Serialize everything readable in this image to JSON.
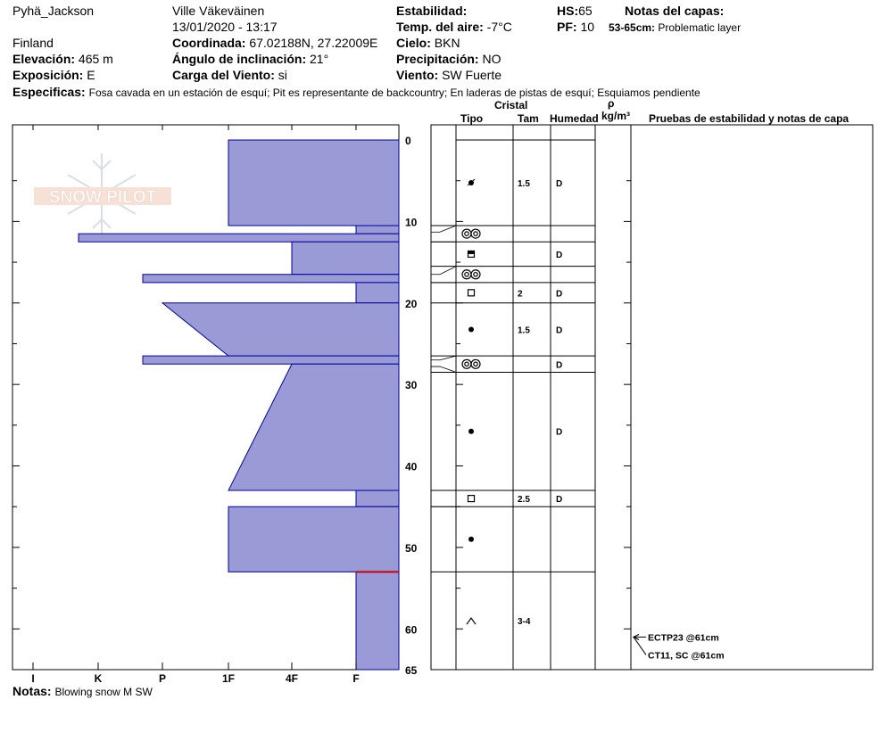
{
  "header": {
    "location": "Pyhä_Jackson",
    "observer": "Ville Väkeväinen",
    "datetime": "13/01/2020 - 13:17",
    "country": "Finland",
    "coord_label": "Coordinada:",
    "coord_value": "67.02188N, 27.22009E",
    "elev_label": "Elevación:",
    "elev_value": "465 m",
    "angle_label": "Ángulo de inclinación:",
    "angle_value": "21°",
    "expo_label": "Exposición:",
    "expo_value": "E",
    "wind_load_label": "Carga del Viento:",
    "wind_load_value": "si",
    "stability_label": "Estabilidad:",
    "air_temp_label": "Temp. del aire:",
    "air_temp_value": "-7°C",
    "sky_label": "Cielo:",
    "sky_value": "BKN",
    "precip_label": "Precipitación:",
    "precip_value": "NO",
    "wind_label": "Viento:",
    "wind_value": "SW Fuerte",
    "hs_label": "HS:",
    "hs_value": "65",
    "pf_label": "PF:",
    "pf_value": "10",
    "layer_notes_label": "Notas del capas:",
    "layer_note_range": "53-65cm:",
    "layer_note_text": "Problematic layer",
    "specifics_label": "Especificas:",
    "specifics_text": "Fosa cavada en un estación de esquí; Pit es representante de backcountry; En laderas de pistas de esquí; Esquiamos pendiente"
  },
  "columns": {
    "cristal": "Cristal",
    "tipo": "Tipo",
    "tam": "Tam",
    "humedad": "Humedad",
    "rho": "ρ",
    "density_unit": "kg/m³",
    "tests": "Pruebas de estabilidad y notas de capa"
  },
  "logo_text": "SNOW PILOT",
  "notes_label": "Notas:",
  "notes_text": "Blowing snow M SW",
  "colors": {
    "fill": "#9a9ad6",
    "stroke": "#0000a0",
    "problem": "#cc0000"
  },
  "chart_data": {
    "type": "bar",
    "orientation": "horizontal",
    "depth_axis": {
      "min": 0,
      "max": 65,
      "ticks": [
        0,
        10,
        20,
        30,
        40,
        50,
        60,
        65
      ]
    },
    "hardness_axis": {
      "labels": [
        "I",
        "K",
        "P",
        "1F",
        "4F",
        "F"
      ]
    },
    "hardness_profile": [
      {
        "top": 0,
        "bottom": 10.5,
        "hardness": "1F"
      },
      {
        "top": 10.5,
        "bottom": 11.5,
        "hardness": "F"
      },
      {
        "top": 11.5,
        "bottom": 12.5,
        "hardness": "K-"
      },
      {
        "top": 12.5,
        "bottom": 16.5,
        "hardness": "4F"
      },
      {
        "top": 16.5,
        "bottom": 17.5,
        "hardness": "P-"
      },
      {
        "top": 17.5,
        "bottom": 20,
        "hardness": "F"
      },
      {
        "top": 20,
        "bottom": 26.5,
        "hardness": "P+ to 1F"
      },
      {
        "top": 26.5,
        "bottom": 27.5,
        "hardness": "P-"
      },
      {
        "top": 27.5,
        "bottom": 43,
        "hardness": "4F to 1F"
      },
      {
        "top": 43,
        "bottom": 45,
        "hardness": "F"
      },
      {
        "top": 45,
        "bottom": 53,
        "hardness": "1F"
      },
      {
        "top": 53,
        "bottom": 65,
        "hardness": "F"
      }
    ],
    "problem_layer_depth": 53,
    "layers": [
      {
        "top": 0,
        "bottom": 10.5,
        "grain": "decomposing",
        "size": "1.5",
        "moisture": "D"
      },
      {
        "top": 10.5,
        "bottom": 12.5,
        "grain": "surface-hoar",
        "size": "",
        "moisture": ""
      },
      {
        "top": 12.5,
        "bottom": 15.5,
        "grain": "melt-freeze",
        "size": "",
        "moisture": "D"
      },
      {
        "top": 15.5,
        "bottom": 17.5,
        "grain": "surface-hoar",
        "size": "",
        "moisture": ""
      },
      {
        "top": 17.5,
        "bottom": 20,
        "grain": "facets",
        "size": "2",
        "moisture": "D"
      },
      {
        "top": 20,
        "bottom": 26.5,
        "grain": "rounds",
        "size": "1.5",
        "moisture": "D"
      },
      {
        "top": 26.5,
        "bottom": 28.5,
        "grain": "surface-hoar",
        "size": "",
        "moisture": "D"
      },
      {
        "top": 28.5,
        "bottom": 43,
        "grain": "rounds",
        "size": "",
        "moisture": "D"
      },
      {
        "top": 43,
        "bottom": 45,
        "grain": "facets",
        "size": "2.5",
        "moisture": "D"
      },
      {
        "top": 45,
        "bottom": 53,
        "grain": "rounds",
        "size": "",
        "moisture": ""
      },
      {
        "top": 53,
        "bottom": 65,
        "grain": "depth-hoar",
        "size": "3-4",
        "moisture": ""
      }
    ],
    "tests": [
      {
        "label": "ECTP23 @61cm",
        "depth": 61
      },
      {
        "label": "CT11, SC @61cm",
        "depth": 61
      }
    ]
  }
}
